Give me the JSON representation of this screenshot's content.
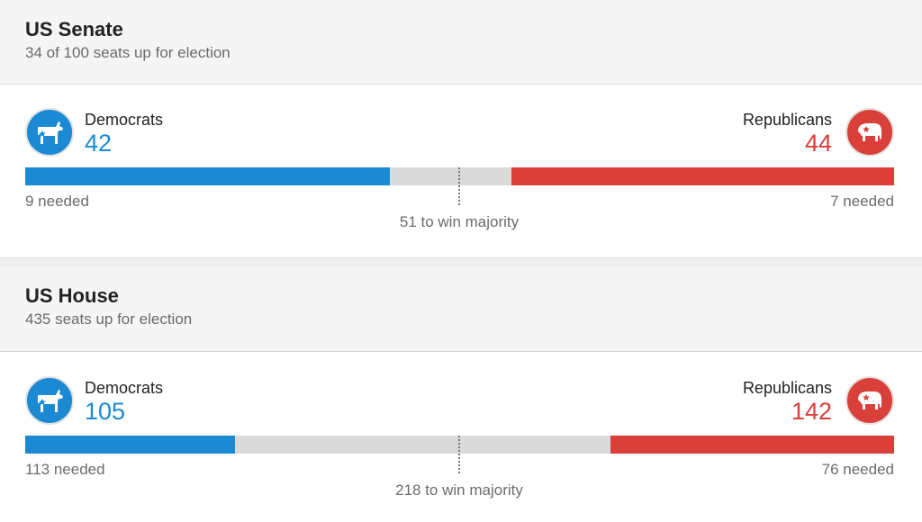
{
  "senate": {
    "title": "US Senate",
    "subtitle": "34 of 100 seats up for election",
    "dem": {
      "label": "Democrats",
      "count": "42",
      "needed": "9 needed",
      "icon": "donkey-icon",
      "color": "#1b8ad3",
      "share": 0.42
    },
    "rep": {
      "label": "Republicans",
      "count": "44",
      "needed": "7 needed",
      "icon": "elephant-icon",
      "color": "#d9403a",
      "share": 0.44
    },
    "majority": "51 to win majority",
    "majority_share": 0.5
  },
  "house": {
    "title": "US House",
    "subtitle": "435 seats up for election",
    "dem": {
      "label": "Democrats",
      "count": "105",
      "needed": "113 needed",
      "icon": "donkey-icon",
      "color": "#1b8ad3",
      "share": 0.2414
    },
    "rep": {
      "label": "Republicans",
      "count": "142",
      "needed": "76 needed",
      "icon": "elephant-icon",
      "color": "#d9403a",
      "share": 0.3264
    },
    "majority": "218 to win majority",
    "majority_share": 0.5
  }
}
